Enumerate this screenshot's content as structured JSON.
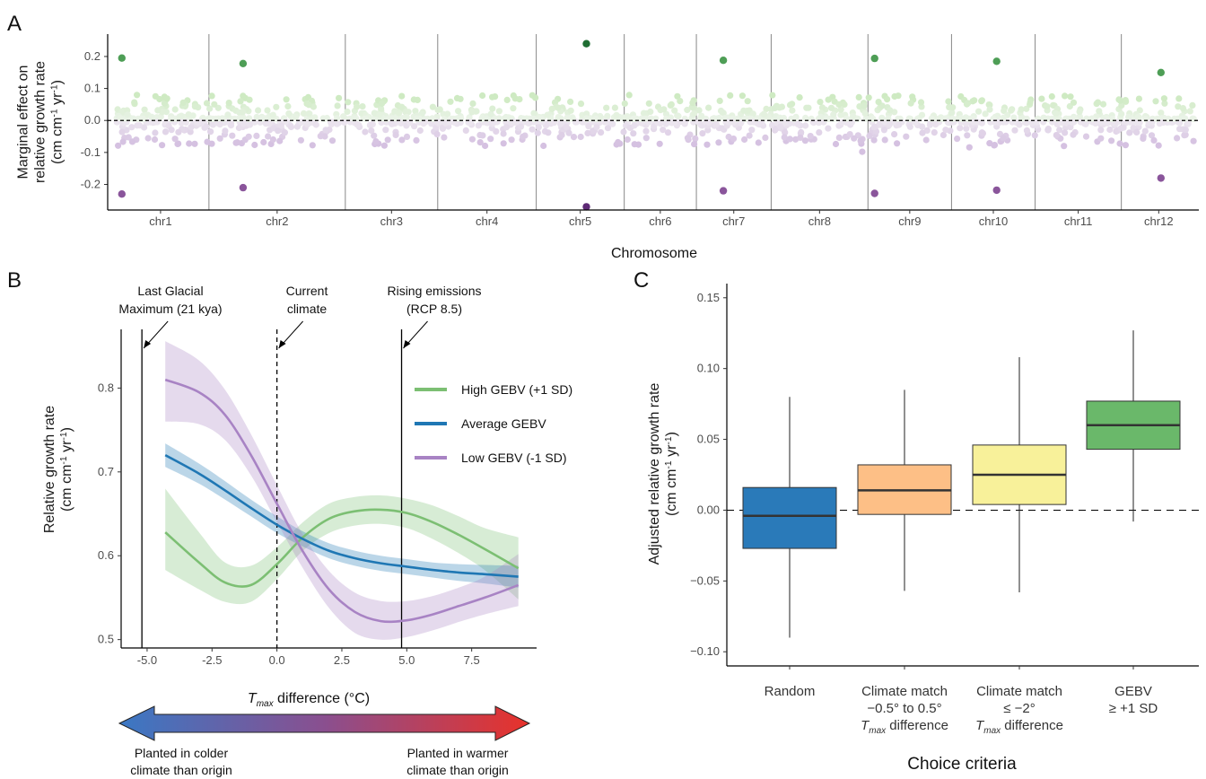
{
  "panels": {
    "a": "A",
    "b": "B",
    "c": "C"
  },
  "chart_data": [
    {
      "type": "scatter",
      "panel": "A",
      "xlabel": "Chromosome",
      "ylabel_lines": [
        "Marginal effect on",
        "relative growth rate",
        "(cm cm-1 yr-1)"
      ],
      "ylim": [
        -0.28,
        0.27
      ],
      "yticks": [
        "0.2",
        "0.1",
        "0.0",
        "-0.1",
        "-0.2"
      ],
      "ytick_values": [
        0.2,
        0.1,
        0.0,
        -0.1,
        -0.2
      ],
      "chromosomes": [
        "chr1",
        "chr2",
        "chr3",
        "chr4",
        "chr5",
        "chr6",
        "chr7",
        "chr8",
        "chr9",
        "chr10",
        "chr11",
        "chr12"
      ],
      "reference_line": 0,
      "colors": {
        "pos_light": "#cfe8c5",
        "pos_mid": "#4e9e56",
        "pos_dark": "#1f6e33",
        "neg_light": "#dccbe3",
        "neg_mid": "#8a559b",
        "neg_dark": "#5e2a75"
      },
      "highlight_points": [
        {
          "chr": "chr1",
          "y": 0.195
        },
        {
          "chr": "chr1",
          "y": -0.23
        },
        {
          "chr": "chr2",
          "y": 0.178
        },
        {
          "chr": "chr2",
          "y": -0.21
        },
        {
          "chr": "chr5",
          "y": 0.24
        },
        {
          "chr": "chr5",
          "y": -0.27
        },
        {
          "chr": "chr7",
          "y": 0.188
        },
        {
          "chr": "chr7",
          "y": -0.22
        },
        {
          "chr": "chr9",
          "y": 0.194
        },
        {
          "chr": "chr9",
          "y": -0.228
        },
        {
          "chr": "chr10",
          "y": 0.185
        },
        {
          "chr": "chr10",
          "y": -0.218
        },
        {
          "chr": "chr12",
          "y": 0.15
        },
        {
          "chr": "chr12",
          "y": -0.18
        }
      ]
    },
    {
      "type": "line",
      "panel": "B",
      "xlabel_var": "T",
      "xlabel_sub": "max",
      "xlabel_rest": " difference (°C)",
      "ylabel_lines": [
        "Relative growth rate",
        "(cm cm-1 yr-1)"
      ],
      "xlim": [
        -6,
        10
      ],
      "ylim": [
        0.49,
        0.87
      ],
      "xticks": [
        "-5.0",
        "-2.5",
        "0.0",
        "2.5",
        "5.0",
        "7.5"
      ],
      "xtick_values": [
        -5,
        -2.5,
        0,
        2.5,
        5,
        7.5
      ],
      "yticks": [
        "0.5",
        "0.6",
        "0.7",
        "0.8"
      ],
      "ytick_values": [
        0.5,
        0.6,
        0.7,
        0.8
      ],
      "x": [
        -4.3,
        -3.0,
        -2.0,
        -1.0,
        0.0,
        1.0,
        2.0,
        3.0,
        4.0,
        5.0,
        6.0,
        7.0,
        8.0,
        9.3
      ],
      "series": [
        {
          "name": "High GEBV (+1 SD)",
          "color": "#7cbf73",
          "values": [
            0.628,
            0.592,
            0.568,
            0.565,
            0.59,
            0.622,
            0.644,
            0.653,
            0.655,
            0.651,
            0.64,
            0.625,
            0.608,
            0.585
          ],
          "lower": [
            0.583,
            0.56,
            0.545,
            0.545,
            0.572,
            0.606,
            0.627,
            0.636,
            0.638,
            0.633,
            0.62,
            0.603,
            0.583,
            0.548
          ],
          "upper": [
            0.68,
            0.628,
            0.592,
            0.588,
            0.61,
            0.64,
            0.662,
            0.67,
            0.672,
            0.668,
            0.66,
            0.647,
            0.633,
            0.622
          ]
        },
        {
          "name": "Average GEBV",
          "color": "#1f77b4",
          "values": [
            0.72,
            0.698,
            0.678,
            0.657,
            0.637,
            0.62,
            0.606,
            0.597,
            0.591,
            0.587,
            0.583,
            0.58,
            0.578,
            0.575
          ],
          "lower": [
            0.706,
            0.686,
            0.667,
            0.647,
            0.627,
            0.611,
            0.597,
            0.588,
            0.582,
            0.578,
            0.574,
            0.57,
            0.567,
            0.562
          ],
          "upper": [
            0.734,
            0.71,
            0.689,
            0.667,
            0.647,
            0.629,
            0.615,
            0.606,
            0.6,
            0.596,
            0.592,
            0.59,
            0.589,
            0.588
          ]
        },
        {
          "name": "Low GEBV (-1 SD)",
          "color": "#a883c4",
          "values": [
            0.81,
            0.795,
            0.768,
            0.72,
            0.662,
            0.605,
            0.56,
            0.533,
            0.522,
            0.523,
            0.53,
            0.54,
            0.55,
            0.565
          ],
          "lower": [
            0.76,
            0.757,
            0.738,
            0.696,
            0.64,
            0.585,
            0.538,
            0.508,
            0.5,
            0.503,
            0.511,
            0.521,
            0.53,
            0.54
          ],
          "upper": [
            0.856,
            0.833,
            0.798,
            0.745,
            0.684,
            0.625,
            0.582,
            0.556,
            0.546,
            0.546,
            0.552,
            0.562,
            0.575,
            0.602
          ]
        }
      ],
      "vlines": [
        {
          "x": -5.2,
          "style": "solid",
          "label_lines": [
            "Last Glacial",
            "Maximum (21 kya)"
          ]
        },
        {
          "x": 0.0,
          "style": "dashed",
          "label_lines": [
            "Current",
            "climate"
          ]
        },
        {
          "x": 4.8,
          "style": "solid",
          "label_lines": [
            "Rising emissions",
            "(RCP 8.5)"
          ]
        }
      ],
      "arrow_scale": {
        "left_lines": [
          "Planted in colder",
          "climate than origin"
        ],
        "right_lines": [
          "Planted in warmer",
          "climate than origin"
        ],
        "colors": [
          "#3a78c4",
          "#e8322a"
        ]
      }
    },
    {
      "type": "box",
      "panel": "C",
      "xlabel": "Choice criteria",
      "ylabel_lines": [
        "Adjusted relative growth rate",
        "(cm cm-1 yr-1)"
      ],
      "ylim": [
        -0.11,
        0.16
      ],
      "yticks": [
        "0.15",
        "0.10",
        "0.05",
        "0.00",
        "-0.05",
        "-0.10"
      ],
      "ytick_values": [
        0.15,
        0.1,
        0.05,
        0.0,
        -0.05,
        -0.1
      ],
      "reference_line": 0,
      "boxes": [
        {
          "label_lines": [
            "Random"
          ],
          "color": "#2a7ab9",
          "whisker_low": -0.09,
          "q1": -0.027,
          "median": -0.004,
          "q3": 0.016,
          "whisker_high": 0.08
        },
        {
          "label_lines": [
            "Climate match",
            "−0.5° to 0.5°",
            "difference"
          ],
          "tmax_line": 2,
          "color": "#fdbf86",
          "whisker_low": -0.057,
          "q1": -0.003,
          "median": 0.014,
          "q3": 0.032,
          "whisker_high": 0.085
        },
        {
          "label_lines": [
            "Climate match",
            "≤ −2°",
            "difference"
          ],
          "tmax_line": 2,
          "color": "#f8f19a",
          "whisker_low": -0.058,
          "q1": 0.004,
          "median": 0.025,
          "q3": 0.046,
          "whisker_high": 0.108
        },
        {
          "label_lines": [
            "GEBV",
            "≥ +1 SD"
          ],
          "color": "#6ab86a",
          "whisker_low": -0.008,
          "q1": 0.043,
          "median": 0.06,
          "q3": 0.077,
          "whisker_high": 0.127
        }
      ],
      "tmax_var": "T",
      "tmax_sub": "max"
    }
  ]
}
